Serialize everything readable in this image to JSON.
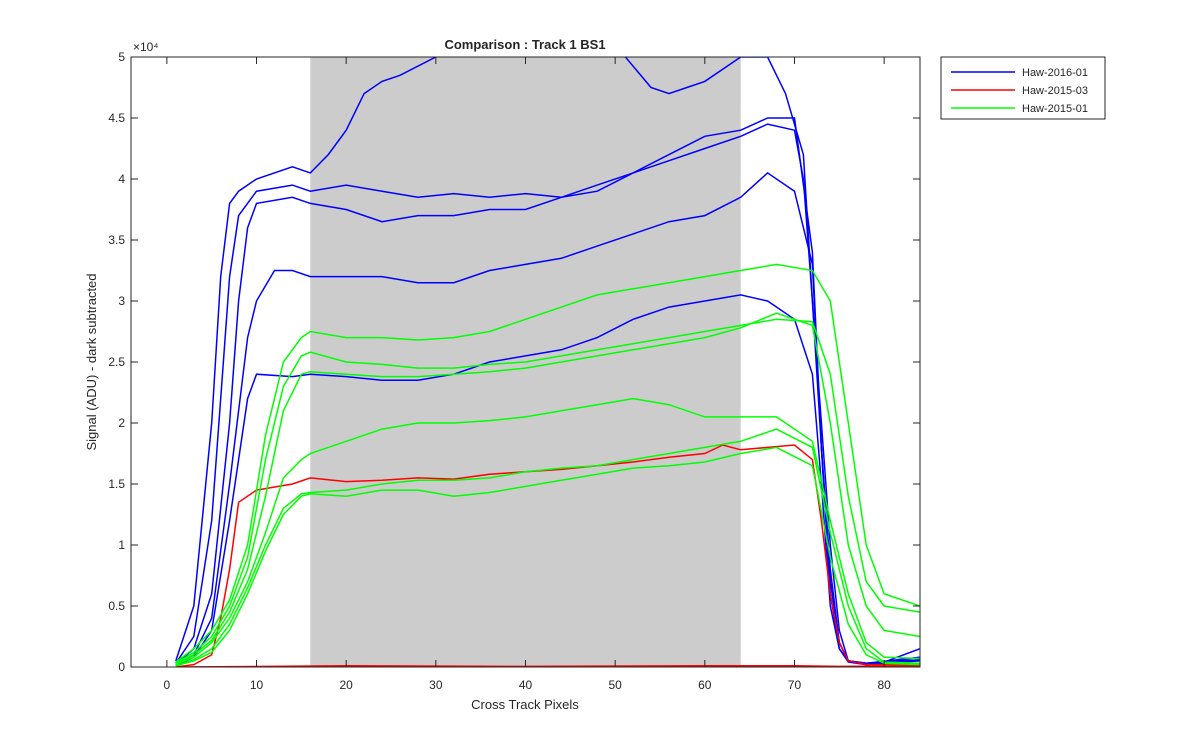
{
  "chart_data": {
    "type": "line",
    "title": "Comparison : Track 1  BS1",
    "xlabel": "Cross Track Pixels",
    "ylabel": "Signal (ADU) - dark subtracted",
    "xlim": [
      -4,
      84
    ],
    "ylim": [
      0,
      50000
    ],
    "y_exponent_label": "×10⁴",
    "x_ticks": [
      0,
      10,
      20,
      30,
      40,
      50,
      60,
      70,
      80
    ],
    "x_tick_labels": [
      "0",
      "10",
      "20",
      "30",
      "40",
      "50",
      "60",
      "70",
      "80"
    ],
    "y_ticks": [
      0,
      5000,
      10000,
      15000,
      20000,
      25000,
      30000,
      35000,
      40000,
      45000,
      50000
    ],
    "y_tick_labels": [
      "0",
      "0.5",
      "1",
      "1.5",
      "2",
      "2.5",
      "3",
      "3.5",
      "4",
      "4.5",
      "5"
    ],
    "shaded_region": {
      "x_start": 16,
      "x_end": 64,
      "color": "#cccccc"
    },
    "grid": false,
    "legend_position": "outside-top-right",
    "colors": {
      "Haw-2016-01": "#0000ff",
      "Haw-2015-03": "#ff0000",
      "Haw-2015-01": "#00ff00"
    },
    "series": [
      {
        "name": "Haw-2016-01",
        "color": "#0000ff",
        "x": [
          1,
          3,
          5,
          6,
          7,
          8,
          10,
          14,
          16,
          18,
          20,
          22,
          24,
          26,
          30,
          34,
          38,
          40,
          44,
          46,
          50,
          54,
          56,
          58,
          60,
          64,
          67,
          69,
          71,
          72,
          73,
          74,
          75,
          76,
          78,
          80,
          84
        ],
        "y": [
          500,
          5000,
          20000,
          32000,
          38000,
          39000,
          40000,
          41000,
          40500,
          42000,
          44000,
          47000,
          48000,
          48500,
          50000,
          51000,
          52000,
          52500,
          53000,
          52000,
          51000,
          47500,
          47000,
          47500,
          48000,
          50000,
          50000,
          47000,
          42000,
          30000,
          20000,
          10000,
          3000,
          500,
          300,
          400,
          1500
        ]
      },
      {
        "name": "",
        "color": "#0000ff",
        "x": [
          1,
          3,
          5,
          6,
          7,
          8,
          10,
          14,
          16,
          20,
          24,
          28,
          32,
          36,
          40,
          44,
          48,
          52,
          56,
          60,
          64,
          67,
          70,
          71,
          72,
          73,
          74,
          75,
          76,
          78,
          84
        ],
        "y": [
          300,
          2500,
          12000,
          22000,
          32000,
          37000,
          39000,
          39500,
          39000,
          39500,
          39000,
          38500,
          38800,
          38500,
          38800,
          38500,
          39000,
          40500,
          41500,
          42500,
          43500,
          44500,
          44000,
          40000,
          30000,
          18000,
          8000,
          2000,
          500,
          300,
          800
        ]
      },
      {
        "name": "",
        "color": "#0000ff",
        "x": [
          1,
          3,
          5,
          7,
          8,
          9,
          10,
          14,
          16,
          20,
          24,
          28,
          32,
          36,
          40,
          44,
          48,
          52,
          56,
          60,
          64,
          67,
          70,
          72,
          73,
          74,
          75,
          76,
          78,
          84
        ],
        "y": [
          200,
          1500,
          6000,
          20000,
          30000,
          36000,
          38000,
          38500,
          38000,
          37500,
          36500,
          37000,
          37000,
          37500,
          37500,
          38500,
          39500,
          40500,
          42000,
          43500,
          44000,
          45000,
          45000,
          34000,
          18000,
          7000,
          2000,
          500,
          300,
          600
        ]
      },
      {
        "name": "",
        "color": "#0000ff",
        "x": [
          1,
          3,
          5,
          7,
          9,
          10,
          12,
          14,
          16,
          20,
          24,
          28,
          32,
          36,
          40,
          44,
          48,
          52,
          56,
          60,
          64,
          67,
          70,
          72,
          73,
          74,
          75,
          76,
          78,
          84
        ],
        "y": [
          200,
          1000,
          4000,
          15000,
          27000,
          30000,
          32500,
          32500,
          32000,
          32000,
          32000,
          31500,
          31500,
          32500,
          33000,
          33500,
          34500,
          35500,
          36500,
          37000,
          38500,
          40500,
          39000,
          33000,
          18000,
          6000,
          1500,
          500,
          200,
          800
        ]
      },
      {
        "name": "",
        "color": "#0000ff",
        "x": [
          1,
          3,
          5,
          7,
          9,
          10,
          14,
          16,
          20,
          24,
          28,
          32,
          36,
          40,
          44,
          48,
          52,
          56,
          60,
          64,
          67,
          70,
          72,
          73,
          74,
          75,
          76,
          78,
          84
        ],
        "y": [
          100,
          800,
          3000,
          12000,
          22000,
          24000,
          23800,
          24000,
          23800,
          23500,
          23500,
          24000,
          25000,
          25500,
          26000,
          27000,
          28500,
          29500,
          30000,
          30500,
          30000,
          28500,
          24000,
          15000,
          5000,
          1500,
          400,
          200,
          500
        ]
      },
      {
        "name": "Haw-2015-03",
        "color": "#ff0000",
        "x": [
          1,
          3,
          5,
          6,
          7,
          8,
          10,
          14,
          16,
          20,
          24,
          28,
          32,
          36,
          40,
          44,
          48,
          52,
          56,
          60,
          62,
          64,
          67,
          70,
          72,
          73,
          74,
          75,
          76,
          78,
          84
        ],
        "y": [
          0,
          200,
          1000,
          4000,
          8000,
          13500,
          14500,
          15000,
          15500,
          15200,
          15300,
          15500,
          15400,
          15800,
          16000,
          16200,
          16500,
          16800,
          17200,
          17500,
          18200,
          17800,
          18000,
          18200,
          17000,
          12000,
          6000,
          2000,
          500,
          200,
          200
        ]
      },
      {
        "name": "",
        "color": "#ff0000",
        "x": [
          1,
          20,
          40,
          60,
          70,
          75,
          84
        ],
        "y": [
          0,
          100,
          50,
          100,
          100,
          50,
          100
        ]
      },
      {
        "name": "Haw-2015-01",
        "color": "#00ff00",
        "x": [
          1,
          3,
          5,
          7,
          9,
          11,
          13,
          15,
          16,
          20,
          24,
          28,
          32,
          36,
          40,
          44,
          48,
          52,
          56,
          60,
          64,
          68,
          72,
          74,
          76,
          78,
          80,
          84
        ],
        "y": [
          400,
          1500,
          3000,
          5500,
          10000,
          19000,
          25000,
          27000,
          27500,
          27000,
          27000,
          26800,
          27000,
          27500,
          28500,
          29500,
          30500,
          31000,
          31500,
          32000,
          32500,
          33000,
          32500,
          30000,
          20000,
          10000,
          6000,
          5000
        ]
      },
      {
        "name": "",
        "color": "#00ff00",
        "x": [
          1,
          3,
          5,
          7,
          9,
          11,
          13,
          15,
          16,
          20,
          24,
          28,
          32,
          36,
          40,
          44,
          48,
          52,
          56,
          60,
          64,
          68,
          72,
          74,
          76,
          78,
          80,
          84
        ],
        "y": [
          300,
          1200,
          2500,
          5000,
          9000,
          17000,
          23000,
          25500,
          25800,
          25000,
          24800,
          24500,
          24500,
          24800,
          25000,
          25500,
          26000,
          26500,
          27000,
          27500,
          28000,
          28500,
          28300,
          24000,
          14000,
          7000,
          5000,
          4500
        ]
      },
      {
        "name": "",
        "color": "#00ff00",
        "x": [
          1,
          3,
          5,
          7,
          9,
          11,
          13,
          15,
          16,
          20,
          24,
          28,
          32,
          36,
          40,
          44,
          48,
          52,
          56,
          60,
          64,
          68,
          72,
          74,
          76,
          78,
          80,
          84
        ],
        "y": [
          200,
          1000,
          2200,
          4500,
          8000,
          14000,
          21000,
          24000,
          24200,
          24000,
          23800,
          23800,
          24000,
          24200,
          24500,
          25000,
          25500,
          26000,
          26500,
          27000,
          27800,
          29000,
          28000,
          20000,
          10000,
          5000,
          3000,
          2500
        ]
      },
      {
        "name": "",
        "color": "#00ff00",
        "x": [
          1,
          3,
          5,
          7,
          9,
          11,
          13,
          15,
          16,
          20,
          24,
          28,
          32,
          36,
          40,
          44,
          48,
          52,
          56,
          60,
          64,
          68,
          72,
          74,
          76,
          78,
          80,
          84
        ],
        "y": [
          200,
          800,
          2000,
          4000,
          7000,
          11000,
          15500,
          17000,
          17500,
          18500,
          19500,
          20000,
          20000,
          20200,
          20500,
          21000,
          21500,
          22000,
          21500,
          20500,
          20500,
          20500,
          18500,
          12000,
          6000,
          2000,
          800,
          700
        ]
      },
      {
        "name": "",
        "color": "#00ff00",
        "x": [
          1,
          3,
          5,
          7,
          9,
          11,
          13,
          15,
          16,
          20,
          24,
          28,
          32,
          36,
          40,
          44,
          48,
          52,
          56,
          60,
          64,
          68,
          72,
          74,
          76,
          78,
          80,
          84
        ],
        "y": [
          100,
          600,
          1500,
          3500,
          6500,
          10000,
          13000,
          14200,
          14300,
          14500,
          15000,
          15300,
          15300,
          15500,
          16000,
          16300,
          16500,
          17000,
          17500,
          18000,
          18500,
          19500,
          18000,
          11000,
          5000,
          1500,
          400,
          300
        ]
      },
      {
        "name": "",
        "color": "#00ff00",
        "x": [
          1,
          3,
          5,
          7,
          9,
          11,
          13,
          15,
          16,
          20,
          24,
          28,
          32,
          36,
          40,
          44,
          48,
          52,
          56,
          60,
          64,
          68,
          72,
          74,
          76,
          78,
          80,
          84
        ],
        "y": [
          100,
          500,
          1200,
          3000,
          6000,
          9500,
          12500,
          14000,
          14200,
          14000,
          14500,
          14500,
          14000,
          14300,
          14800,
          15300,
          15800,
          16300,
          16500,
          16800,
          17500,
          18000,
          16500,
          9000,
          3500,
          1000,
          300,
          200
        ]
      }
    ]
  }
}
